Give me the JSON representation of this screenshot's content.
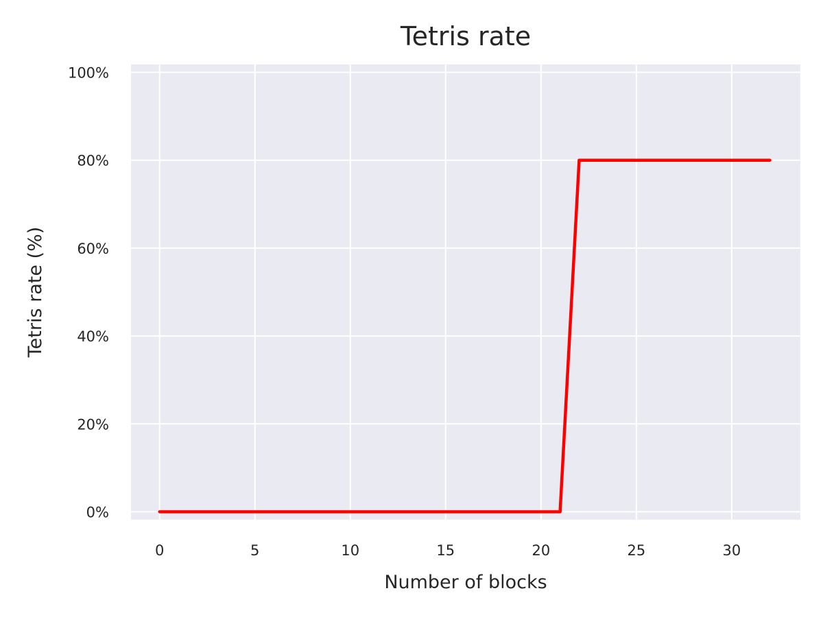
{
  "chart_data": {
    "type": "line",
    "title": "Tetris rate",
    "xlabel": "Number of blocks",
    "ylabel": "Tetris rate (%)",
    "xlim": [
      -1.5,
      33.6
    ],
    "ylim": [
      -1.8,
      101.8
    ],
    "x_ticks": [
      0,
      5,
      10,
      15,
      20,
      25,
      30
    ],
    "x_tick_labels": [
      "0",
      "5",
      "10",
      "15",
      "20",
      "25",
      "30"
    ],
    "y_ticks": [
      0,
      20,
      40,
      60,
      80,
      100
    ],
    "y_tick_labels": [
      "0%",
      "20%",
      "40%",
      "60%",
      "80%",
      "100%"
    ],
    "grid": true,
    "colors": {
      "background": "#eaeaf2",
      "grid": "#ffffff",
      "line": "#ff0000"
    },
    "series": [
      {
        "x": [
          0,
          1,
          2,
          3,
          4,
          5,
          6,
          7,
          8,
          9,
          10,
          11,
          12,
          13,
          14,
          15,
          16,
          17,
          18,
          19,
          20,
          21,
          22,
          23,
          24,
          25,
          26,
          27,
          28,
          29,
          30,
          31,
          32
        ],
        "y": [
          0,
          0,
          0,
          0,
          0,
          0,
          0,
          0,
          0,
          0,
          0,
          0,
          0,
          0,
          0,
          0,
          0,
          0,
          0,
          0,
          0,
          0,
          80,
          80,
          80,
          80,
          80,
          80,
          80,
          80,
          80,
          80,
          80
        ]
      }
    ]
  }
}
